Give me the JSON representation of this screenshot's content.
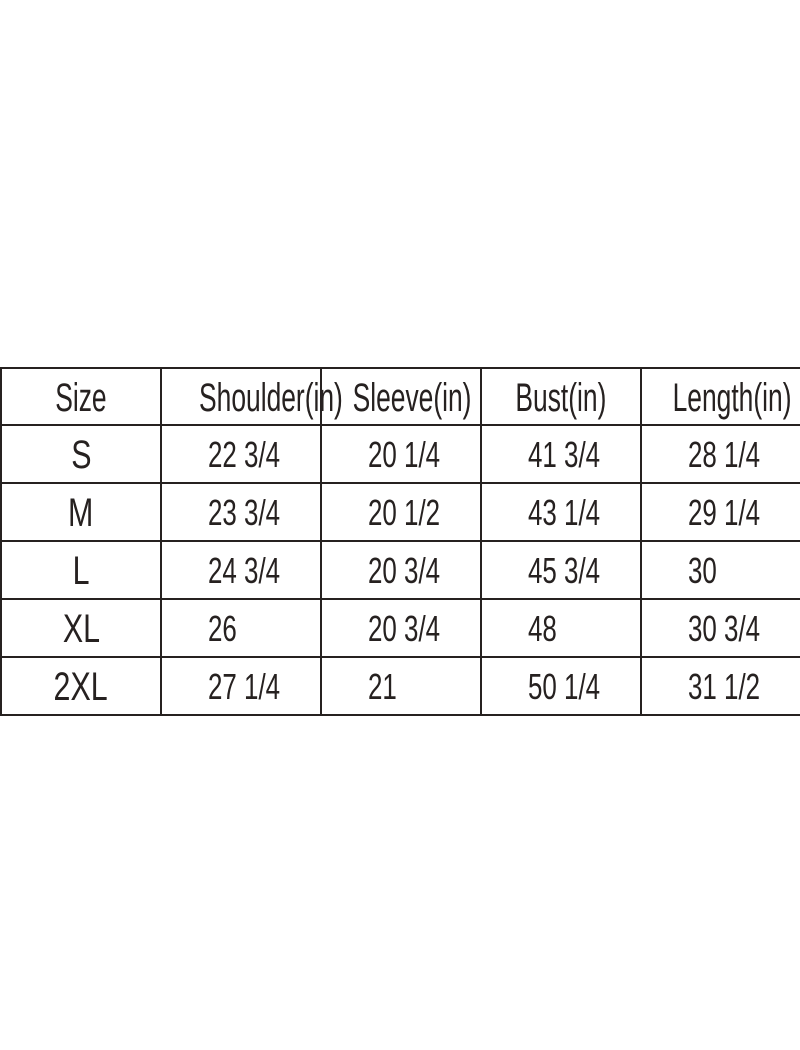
{
  "colors": {
    "background": "#ffffff",
    "grid_line": "#262120",
    "text": "#262120"
  },
  "chart_data": {
    "type": "table",
    "columns": [
      "Size",
      "Shoulder(in)",
      "Sleeve(in)",
      "Bust(in)",
      "Length(in)"
    ],
    "rows": [
      [
        "S",
        "22 3/4",
        "20 1/4",
        "41 3/4",
        "28 1/4"
      ],
      [
        "M",
        "23 3/4",
        "20 1/2",
        "43 1/4",
        "29 1/4"
      ],
      [
        "L",
        "24 3/4",
        "20 3/4",
        "45 3/4",
        "30"
      ],
      [
        "XL",
        "26",
        "20 3/4",
        "48",
        "30 3/4"
      ],
      [
        "2XL",
        "27 1/4",
        "21",
        "50 1/4",
        "31 1/2"
      ]
    ]
  }
}
